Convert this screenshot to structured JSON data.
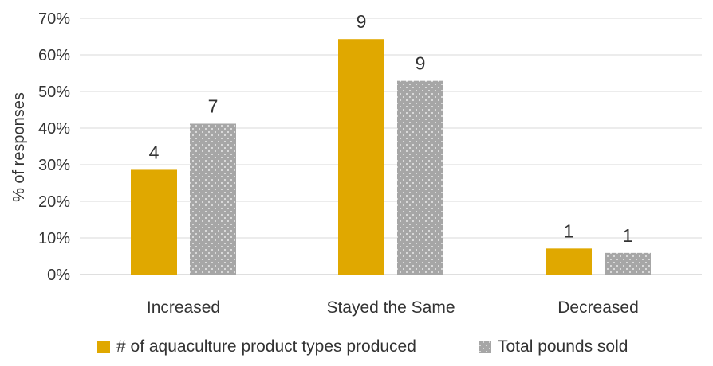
{
  "chart_data": {
    "type": "bar",
    "categories": [
      "Increased",
      "Stayed the Same",
      "Decreased"
    ],
    "ylabel": "% of responses",
    "xlabel": "",
    "ylim": [
      0,
      0.7
    ],
    "yticks": [
      "0%",
      "10%",
      "20%",
      "30%",
      "40%",
      "50%",
      "60%",
      "70%"
    ],
    "grid": true,
    "legend_position": "bottom",
    "series": [
      {
        "name": "# of aquaculture product types produced",
        "values": [
          0.286,
          0.643,
          0.071
        ],
        "data_labels": [
          "4",
          "9",
          "1"
        ],
        "color": "#E0A800",
        "pattern": "solid"
      },
      {
        "name": "Total pounds sold",
        "values": [
          0.412,
          0.529,
          0.059
        ],
        "data_labels": [
          "7",
          "9",
          "1"
        ],
        "color": "#A6A6A6",
        "pattern": "dotted"
      }
    ]
  }
}
